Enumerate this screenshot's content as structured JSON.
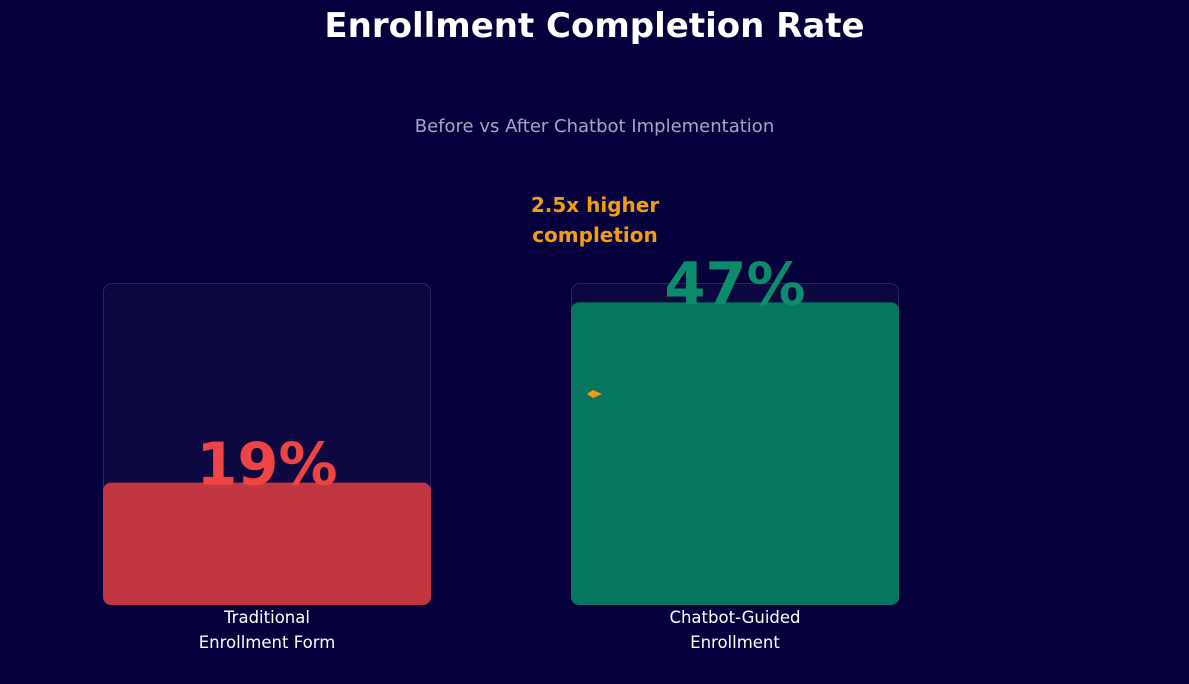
{
  "chart_data": {
    "type": "bar",
    "title": "Enrollment Completion Rate",
    "subtitle": "Before vs After Chatbot Implementation",
    "categories": [
      [
        "Traditional",
        "Enrollment Form"
      ],
      [
        "Chatbot-Guided",
        "Enrollment"
      ]
    ],
    "values": [
      19,
      47
    ],
    "value_labels": [
      "19%",
      "47%"
    ],
    "ylim": [
      0,
      50
    ],
    "grid": false,
    "annotation": {
      "lines": [
        "2.5x higher",
        "completion"
      ]
    },
    "colors": {
      "background": "#05003b",
      "track": "#0d0940",
      "track_border": "#2a2660",
      "bars": [
        "#c13741",
        "#077660"
      ],
      "value_labels": [
        "#ef4444",
        "#0b8d6c"
      ],
      "annotation": "#f59e0b",
      "marker": "#f59e0b",
      "subtitle": "#a7a6c4"
    }
  }
}
